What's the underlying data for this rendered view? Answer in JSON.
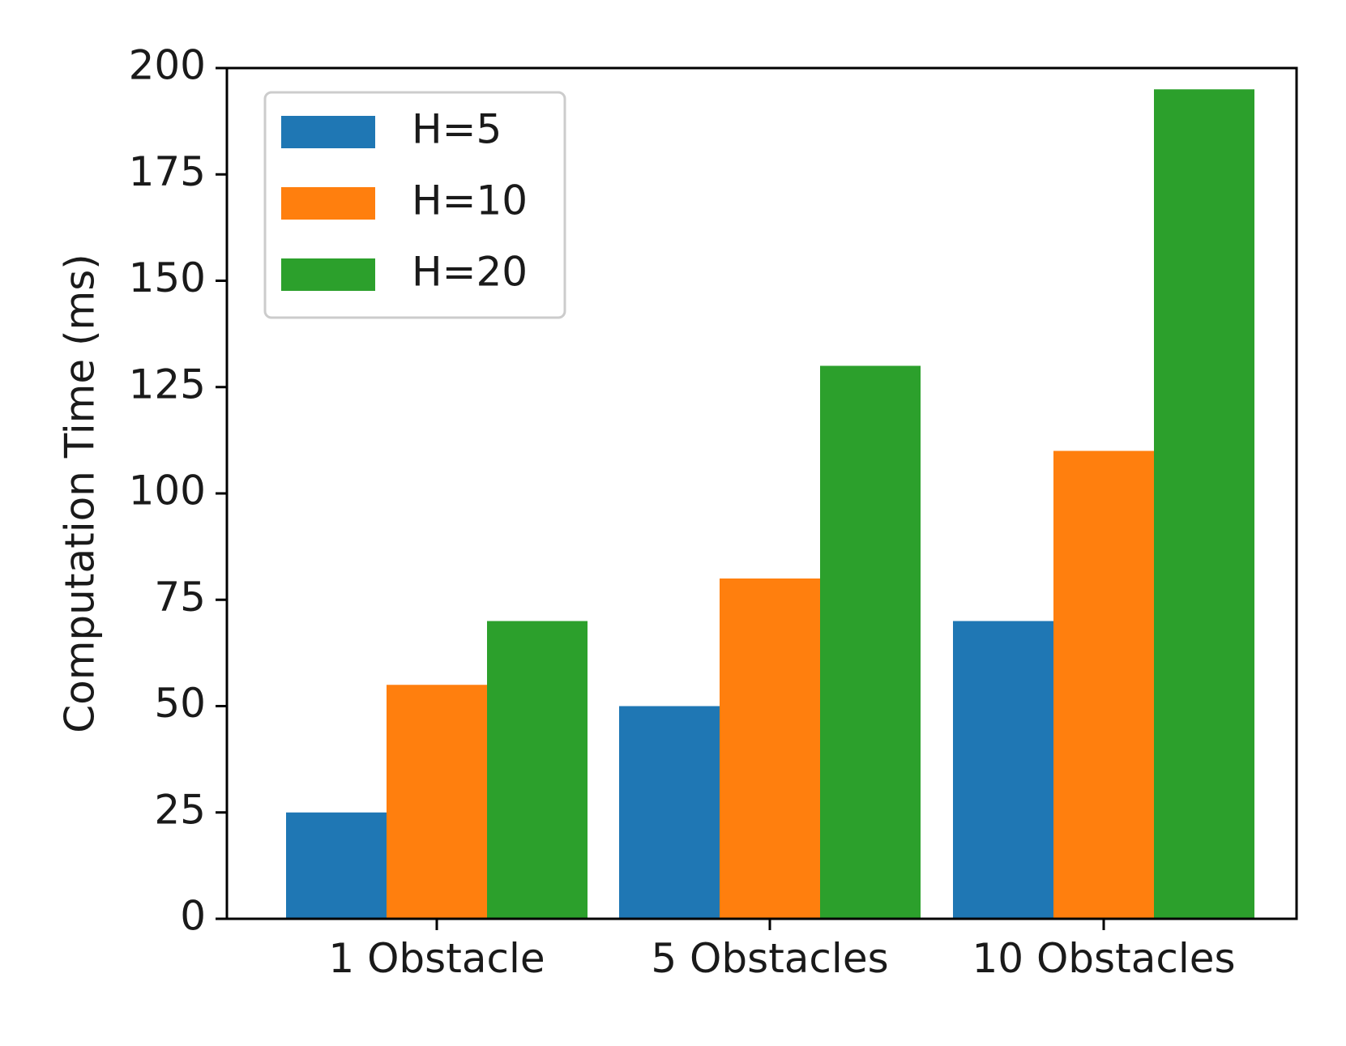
{
  "chart_data": {
    "type": "bar",
    "title": "",
    "xlabel": "",
    "ylabel": "Computation Time (ms)",
    "categories": [
      "1 Obstacle",
      "5 Obstacles",
      "10 Obstacles"
    ],
    "series": [
      {
        "name": "H=5",
        "color": "#1f77b4",
        "values": [
          25,
          50,
          70
        ]
      },
      {
        "name": "H=10",
        "color": "#ff7f0e",
        "values": [
          55,
          80,
          110
        ]
      },
      {
        "name": "H=20",
        "color": "#2ca02c",
        "values": [
          70,
          130,
          195
        ]
      }
    ],
    "ylim": [
      0,
      200
    ],
    "yticks": [
      0,
      25,
      50,
      75,
      100,
      125,
      150,
      175,
      200
    ],
    "ytick_labels": [
      "0",
      "25",
      "50",
      "75",
      "100",
      "125",
      "150",
      "175",
      "200"
    ],
    "grid": false,
    "legend_position": "top-left"
  }
}
